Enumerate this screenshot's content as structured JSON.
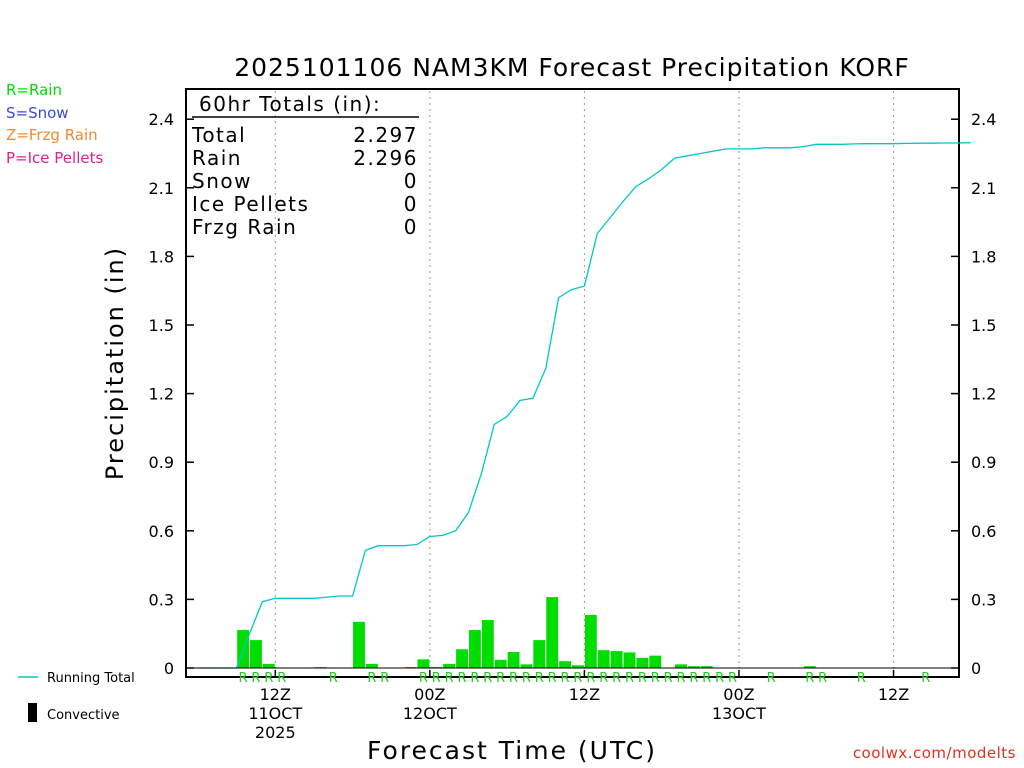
{
  "chart_data": {
    "type": "bar",
    "title": "2025101106 NAM3KM Forecast Precipitation KORF",
    "xlabel": "Forecast Time (UTC)",
    "ylabel": "Precipitation (in)",
    "ylim": [
      0,
      2.5
    ],
    "y_ticks": [
      "0",
      "0.3",
      "0.6",
      "0.9",
      "1.2",
      "1.5",
      "1.8",
      "2.1",
      "2.4"
    ],
    "y_tick_values": [
      0,
      0.3,
      0.6,
      0.9,
      1.2,
      1.5,
      1.8,
      2.1,
      2.4
    ],
    "forecast_hours": [
      0,
      1,
      2,
      3,
      4,
      5,
      6,
      7,
      8,
      9,
      10,
      11,
      12,
      13,
      14,
      15,
      16,
      17,
      18,
      19,
      20,
      21,
      22,
      23,
      24,
      25,
      26,
      27,
      28,
      29,
      30,
      31,
      32,
      33,
      34,
      35,
      36,
      37,
      38,
      39,
      40,
      41,
      42,
      43,
      44,
      45,
      46,
      47,
      48,
      49,
      50,
      51,
      52,
      53,
      54,
      55,
      56,
      57,
      58,
      59,
      60
    ],
    "x_tick_labels": [
      {
        "hour": 6,
        "lines": [
          "12Z",
          "11OCT",
          "2025"
        ]
      },
      {
        "hour": 18,
        "lines": [
          "00Z",
          "12OCT"
        ]
      },
      {
        "hour": 30,
        "lines": [
          "12Z"
        ]
      },
      {
        "hour": 42,
        "lines": [
          "00Z",
          "13OCT"
        ]
      },
      {
        "hour": 54,
        "lines": [
          "12Z"
        ]
      }
    ],
    "series": [
      {
        "name": "Hourly Precipitation",
        "type": "bar",
        "color": "#00dd00",
        "values": [
          0,
          0,
          0,
          0,
          0.166,
          0.122,
          0.018,
          0,
          0,
          0,
          0.004,
          0,
          0,
          0.202,
          0.018,
          0,
          0,
          0.004,
          0.038,
          0.004,
          0.018,
          0.082,
          0.166,
          0.21,
          0.036,
          0.07,
          0.016,
          0.122,
          0.31,
          0.03,
          0.012,
          0.232,
          0.078,
          0.074,
          0.068,
          0.044,
          0.054,
          0,
          0.016,
          0.008,
          0.008,
          0,
          0,
          0,
          0,
          0,
          0,
          0,
          0.008,
          0,
          0,
          0,
          0,
          0,
          0,
          0,
          0,
          0,
          0,
          0,
          0
        ]
      },
      {
        "name": "Running Total",
        "type": "line",
        "color": "#00c8c8",
        "values": [
          0,
          0,
          0,
          0,
          0.15,
          0.29,
          0.305,
          0.305,
          0.305,
          0.305,
          0.31,
          0.315,
          0.315,
          0.515,
          0.535,
          0.535,
          0.535,
          0.54,
          0.575,
          0.58,
          0.6,
          0.68,
          0.85,
          1.065,
          1.1,
          1.17,
          1.18,
          1.31,
          1.62,
          1.655,
          1.67,
          1.9,
          1.97,
          2.04,
          2.105,
          2.14,
          2.18,
          2.23,
          2.24,
          2.25,
          2.26,
          2.27,
          2.27,
          2.27,
          2.275,
          2.275,
          2.275,
          2.28,
          2.29,
          2.29,
          2.29,
          2.292,
          2.293,
          2.293,
          2.293,
          2.294,
          2.295,
          2.295,
          2.296,
          2.296,
          2.297
        ]
      }
    ],
    "precip_type_markers": [
      {
        "hour": 4,
        "type": "R"
      },
      {
        "hour": 5,
        "type": "R"
      },
      {
        "hour": 6,
        "type": "R"
      },
      {
        "hour": 7,
        "type": "R"
      },
      {
        "hour": 11,
        "type": "R"
      },
      {
        "hour": 14,
        "type": "R"
      },
      {
        "hour": 15,
        "type": "R"
      },
      {
        "hour": 18,
        "type": "R"
      },
      {
        "hour": 19,
        "type": "R"
      },
      {
        "hour": 20,
        "type": "R"
      },
      {
        "hour": 21,
        "type": "R"
      },
      {
        "hour": 22,
        "type": "R"
      },
      {
        "hour": 23,
        "type": "R"
      },
      {
        "hour": 24,
        "type": "R"
      },
      {
        "hour": 25,
        "type": "R"
      },
      {
        "hour": 26,
        "type": "R"
      },
      {
        "hour": 27,
        "type": "R"
      },
      {
        "hour": 28,
        "type": "R"
      },
      {
        "hour": 29,
        "type": "R"
      },
      {
        "hour": 30,
        "type": "R"
      },
      {
        "hour": 31,
        "type": "R"
      },
      {
        "hour": 32,
        "type": "R"
      },
      {
        "hour": 33,
        "type": "R"
      },
      {
        "hour": 34,
        "type": "R"
      },
      {
        "hour": 35,
        "type": "R"
      },
      {
        "hour": 36,
        "type": "R"
      },
      {
        "hour": 37,
        "type": "R"
      },
      {
        "hour": 38,
        "type": "R"
      },
      {
        "hour": 39,
        "type": "R"
      },
      {
        "hour": 40,
        "type": "R"
      },
      {
        "hour": 41,
        "type": "R"
      },
      {
        "hour": 42,
        "type": "R"
      },
      {
        "hour": 45,
        "type": "R"
      },
      {
        "hour": 48,
        "type": "R"
      },
      {
        "hour": 49,
        "type": "R"
      },
      {
        "hour": 52,
        "type": "R"
      },
      {
        "hour": 57,
        "type": "R"
      }
    ],
    "totals": {
      "header": "60hr Totals (in):",
      "rows": [
        {
          "label": "Total",
          "value": "2.297"
        },
        {
          "label": "Rain",
          "value": "2.296"
        },
        {
          "label": "Snow",
          "value": "0"
        },
        {
          "label": "Ice Pellets",
          "value": "0"
        },
        {
          "label": "Frzg Rain",
          "value": "0"
        }
      ]
    }
  },
  "type_legend": [
    {
      "text": "R=Rain",
      "color": "#00dd00"
    },
    {
      "text": "S=Snow",
      "color": "#3a48e0"
    },
    {
      "text": "Z=Frzg Rain",
      "color": "#f08a30"
    },
    {
      "text": "P=Ice Pellets",
      "color": "#e0208a"
    }
  ],
  "legend": {
    "running_total": "Running Total",
    "convective": "Convective"
  },
  "source": "coolwx.com/modelts",
  "colors": {
    "bar": "#00dd00",
    "line": "#00c8c8",
    "marker": "#22cc22",
    "grid": "#9a9a9a",
    "source": "#e0301e"
  }
}
